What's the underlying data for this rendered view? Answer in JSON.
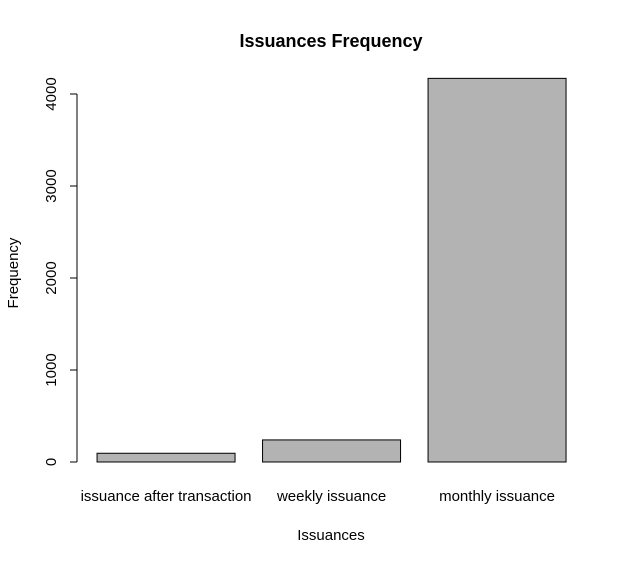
{
  "chart_data": {
    "type": "bar",
    "title": "Issuances Frequency",
    "xlabel": "Issuances",
    "ylabel": "Frequency",
    "categories": [
      "issuance after transaction",
      "weekly issuance",
      "monthly issuance"
    ],
    "values": [
      95,
      240,
      4170
    ],
    "ylim": [
      0,
      4000
    ],
    "yticks": [
      "0",
      "1000",
      "2000",
      "3000",
      "4000"
    ],
    "grid": false,
    "bar_color": "#b3b3b3",
    "bar_edge_color": "#000000"
  }
}
